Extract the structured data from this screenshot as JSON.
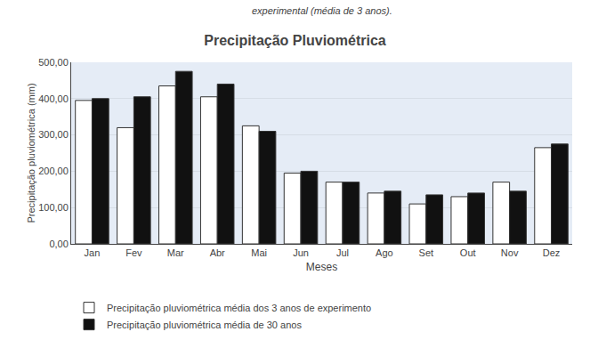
{
  "chart_data": {
    "type": "bar",
    "title": "Precipitação Pluviométrica",
    "annotations": [
      "experimental (média de 3 anos)."
    ],
    "xlabel": "Meses",
    "ylabel": "Precipitação pluviométrica (mm)",
    "categories": [
      "Jan",
      "Fev",
      "Mar",
      "Abr",
      "Mai",
      "Jun",
      "Jul",
      "Ago",
      "Set",
      "Out",
      "Nov",
      "Dez"
    ],
    "series": [
      {
        "name": "Precipitação pluviométrica média dos 3 anos de experimento",
        "color": "#ffffff",
        "values": [
          395,
          320,
          435,
          405,
          325,
          195,
          170,
          140,
          110,
          130,
          170,
          265
        ]
      },
      {
        "name": "Precipitação pluviométrica média de 30 anos",
        "color": "#111111",
        "values": [
          400,
          405,
          475,
          440,
          310,
          200,
          170,
          145,
          135,
          140,
          145,
          275
        ]
      }
    ],
    "ylim": [
      0,
      500
    ],
    "yticks": [
      {
        "value": 0,
        "label": "0,00"
      },
      {
        "value": 100,
        "label": "100,00"
      },
      {
        "value": 200,
        "label": "200,00"
      },
      {
        "value": 300,
        "label": "300,00"
      },
      {
        "value": 400,
        "label": "400,00"
      },
      {
        "value": 500,
        "label": "500,00"
      }
    ],
    "grid": true,
    "legend": "bottom"
  }
}
